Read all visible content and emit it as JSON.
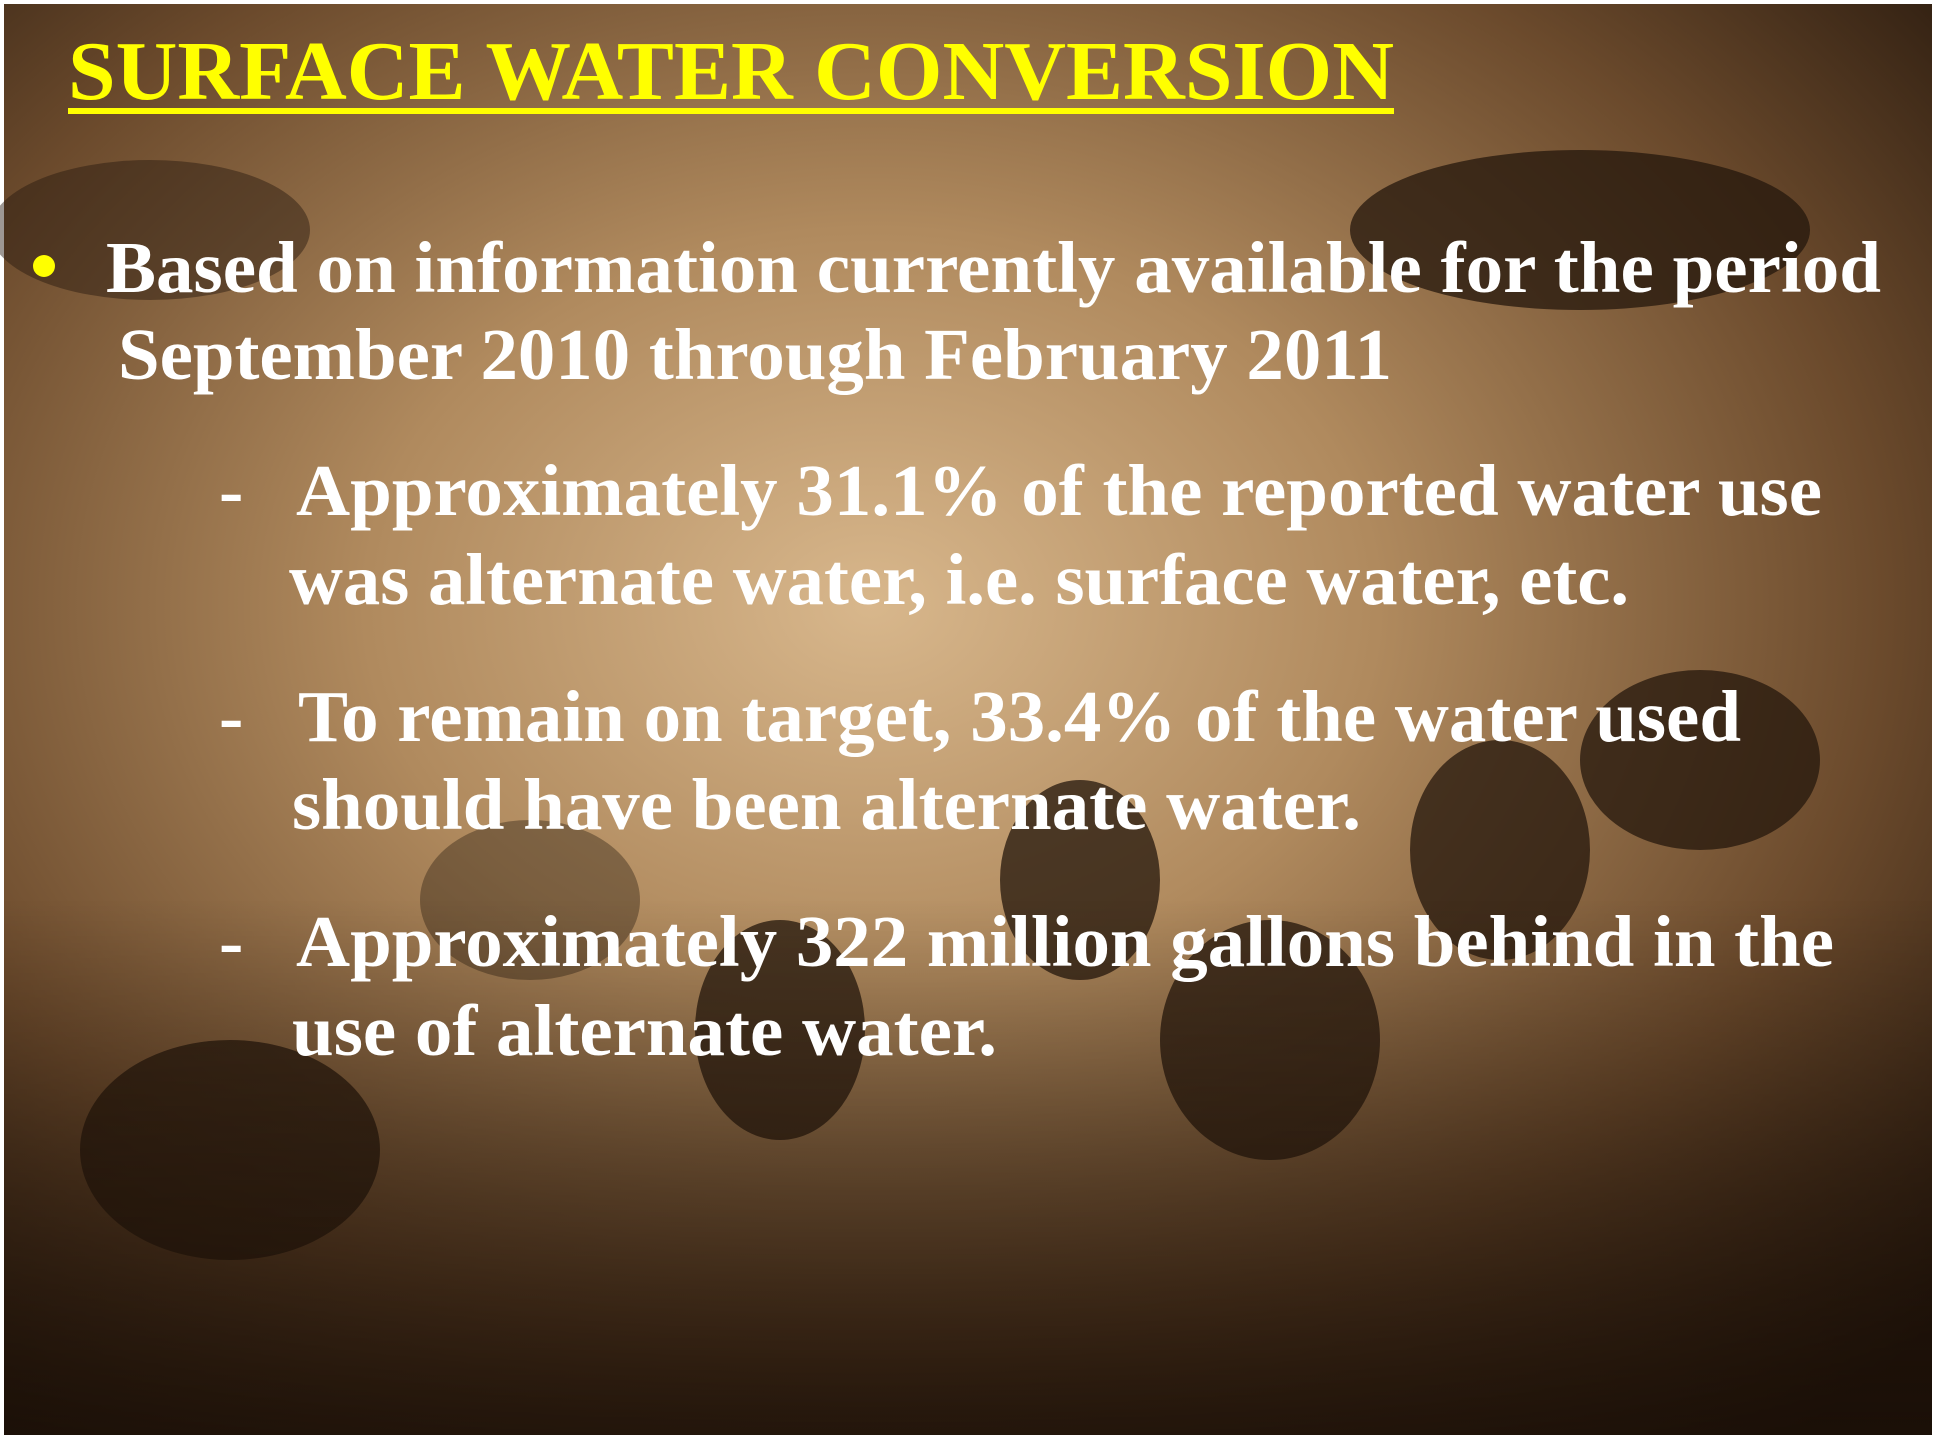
{
  "slide": {
    "title": "SURFACE WATER CONVERSION",
    "bullet": {
      "lines": [
        "Based on information currently available for the period",
        "September 2010 through February 2011"
      ]
    },
    "sub_items": [
      {
        "marker": "-",
        "lines": [
          "Approximately 31.1% of the reported water use",
          "was alternate water, i.e. surface water, etc."
        ]
      },
      {
        "marker": "-",
        "lines": [
          "To remain on target, 33.4% of the water used",
          "should have been alternate water."
        ]
      },
      {
        "marker": "-",
        "lines": [
          "Approximately 322 million gallons behind in the",
          "use of alternate water."
        ]
      }
    ]
  }
}
